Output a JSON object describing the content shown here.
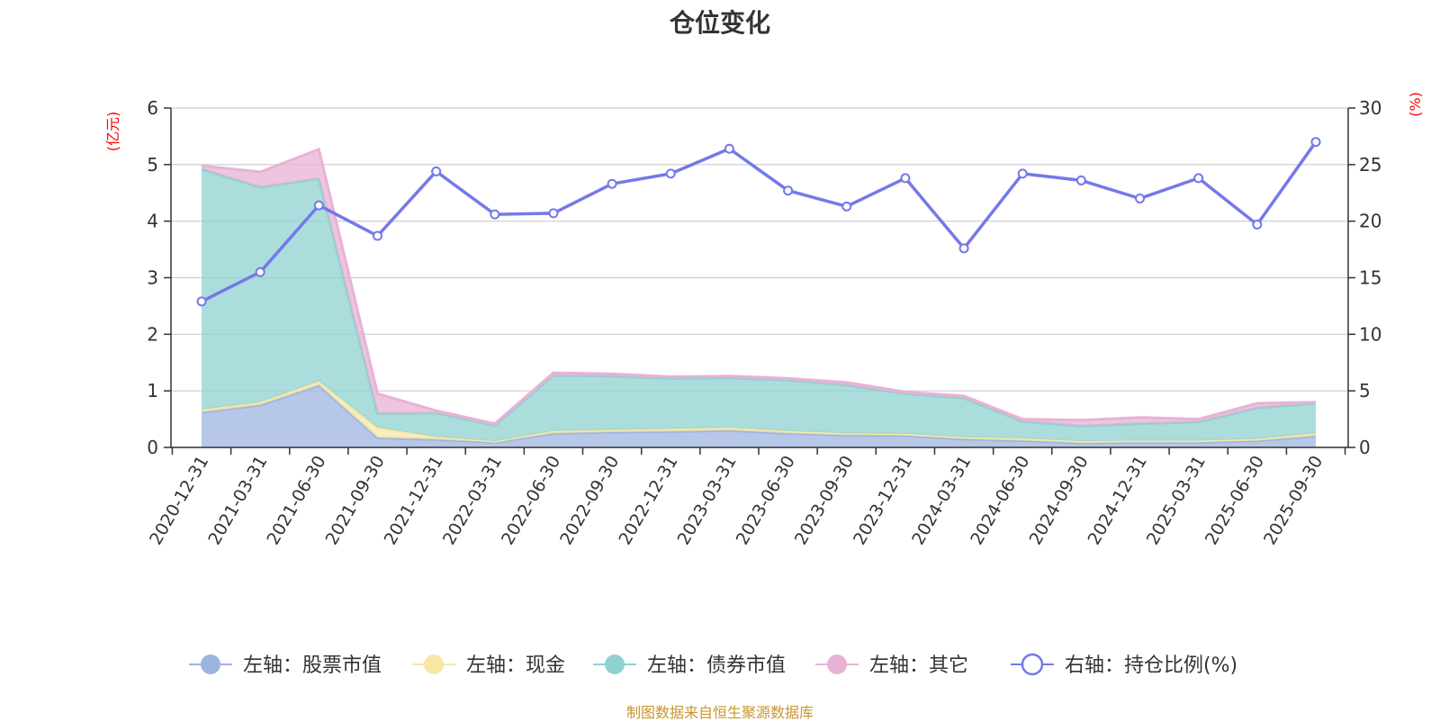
{
  "title": "仓位变化",
  "footer": "制图数据来自恒生聚源数据库",
  "chart_data": {
    "type": "area",
    "title": "仓位变化",
    "categories": [
      "2020-12-31",
      "2021-03-31",
      "2021-06-30",
      "2021-09-30",
      "2021-12-31",
      "2022-03-31",
      "2022-06-30",
      "2022-09-30",
      "2022-12-31",
      "2023-03-31",
      "2023-06-30",
      "2023-09-30",
      "2023-12-31",
      "2024-03-31",
      "2024-06-30",
      "2024-09-30",
      "2024-12-31",
      "2025-03-31",
      "2025-06-30",
      "2025-09-30"
    ],
    "left_axis": {
      "unit": "(亿元)",
      "ylim": [
        0,
        6
      ],
      "ticks": [
        0,
        1,
        2,
        3,
        4,
        5,
        6
      ]
    },
    "right_axis": {
      "unit": "(%)",
      "ylim": [
        0,
        30
      ],
      "ticks": [
        0,
        5,
        10,
        15,
        20,
        25,
        30
      ]
    },
    "grid": true,
    "legend_position": "bottom",
    "stacked": true,
    "series": [
      {
        "name": "左轴：股票市值",
        "axis": "left",
        "kind": "area",
        "color": "#9db4e0",
        "values": [
          0.62,
          0.75,
          1.1,
          0.17,
          0.14,
          0.09,
          0.25,
          0.27,
          0.28,
          0.3,
          0.25,
          0.22,
          0.21,
          0.15,
          0.12,
          0.08,
          0.09,
          0.09,
          0.12,
          0.2
        ]
      },
      {
        "name": "左轴：现金",
        "axis": "left",
        "kind": "area",
        "color": "#f6e7a6",
        "values": [
          0.05,
          0.05,
          0.07,
          0.18,
          0.05,
          0.02,
          0.04,
          0.04,
          0.05,
          0.05,
          0.04,
          0.03,
          0.03,
          0.03,
          0.04,
          0.03,
          0.03,
          0.03,
          0.03,
          0.05
        ]
      },
      {
        "name": "左轴：债券市值",
        "axis": "left",
        "kind": "area",
        "color": "#8fd1d0",
        "values": [
          4.25,
          3.8,
          3.58,
          0.25,
          0.42,
          0.28,
          0.98,
          0.95,
          0.89,
          0.88,
          0.9,
          0.85,
          0.71,
          0.69,
          0.3,
          0.27,
          0.3,
          0.33,
          0.55,
          0.53
        ]
      },
      {
        "name": "左轴：其它",
        "axis": "left",
        "kind": "area",
        "color": "#e8b2d6",
        "values": [
          0.06,
          0.27,
          0.52,
          0.35,
          0.04,
          0.03,
          0.05,
          0.04,
          0.03,
          0.03,
          0.03,
          0.05,
          0.03,
          0.04,
          0.04,
          0.1,
          0.11,
          0.05,
          0.08,
          0.02
        ]
      },
      {
        "name": "右轴：持仓比例(%)",
        "axis": "right",
        "kind": "line",
        "color": "#7479e8",
        "values": [
          12.9,
          15.5,
          21.4,
          18.7,
          24.4,
          20.6,
          20.7,
          23.3,
          24.2,
          26.4,
          22.7,
          21.3,
          23.8,
          17.6,
          24.2,
          23.6,
          22.0,
          23.8,
          19.7,
          27.0
        ]
      }
    ]
  },
  "legend": {
    "items": [
      {
        "label": "左轴：股票市值",
        "color": "#9db4e0",
        "marker": "filled-circle"
      },
      {
        "label": "左轴：现金",
        "color": "#f6e7a6",
        "marker": "filled-circle"
      },
      {
        "label": "左轴：债券市值",
        "color": "#8fd1d0",
        "marker": "filled-circle"
      },
      {
        "label": "左轴：其它",
        "color": "#e8b2d6",
        "marker": "filled-circle"
      },
      {
        "label": "右轴：持仓比例(%)",
        "color": "#7479e8",
        "marker": "hollow-circle"
      }
    ]
  }
}
